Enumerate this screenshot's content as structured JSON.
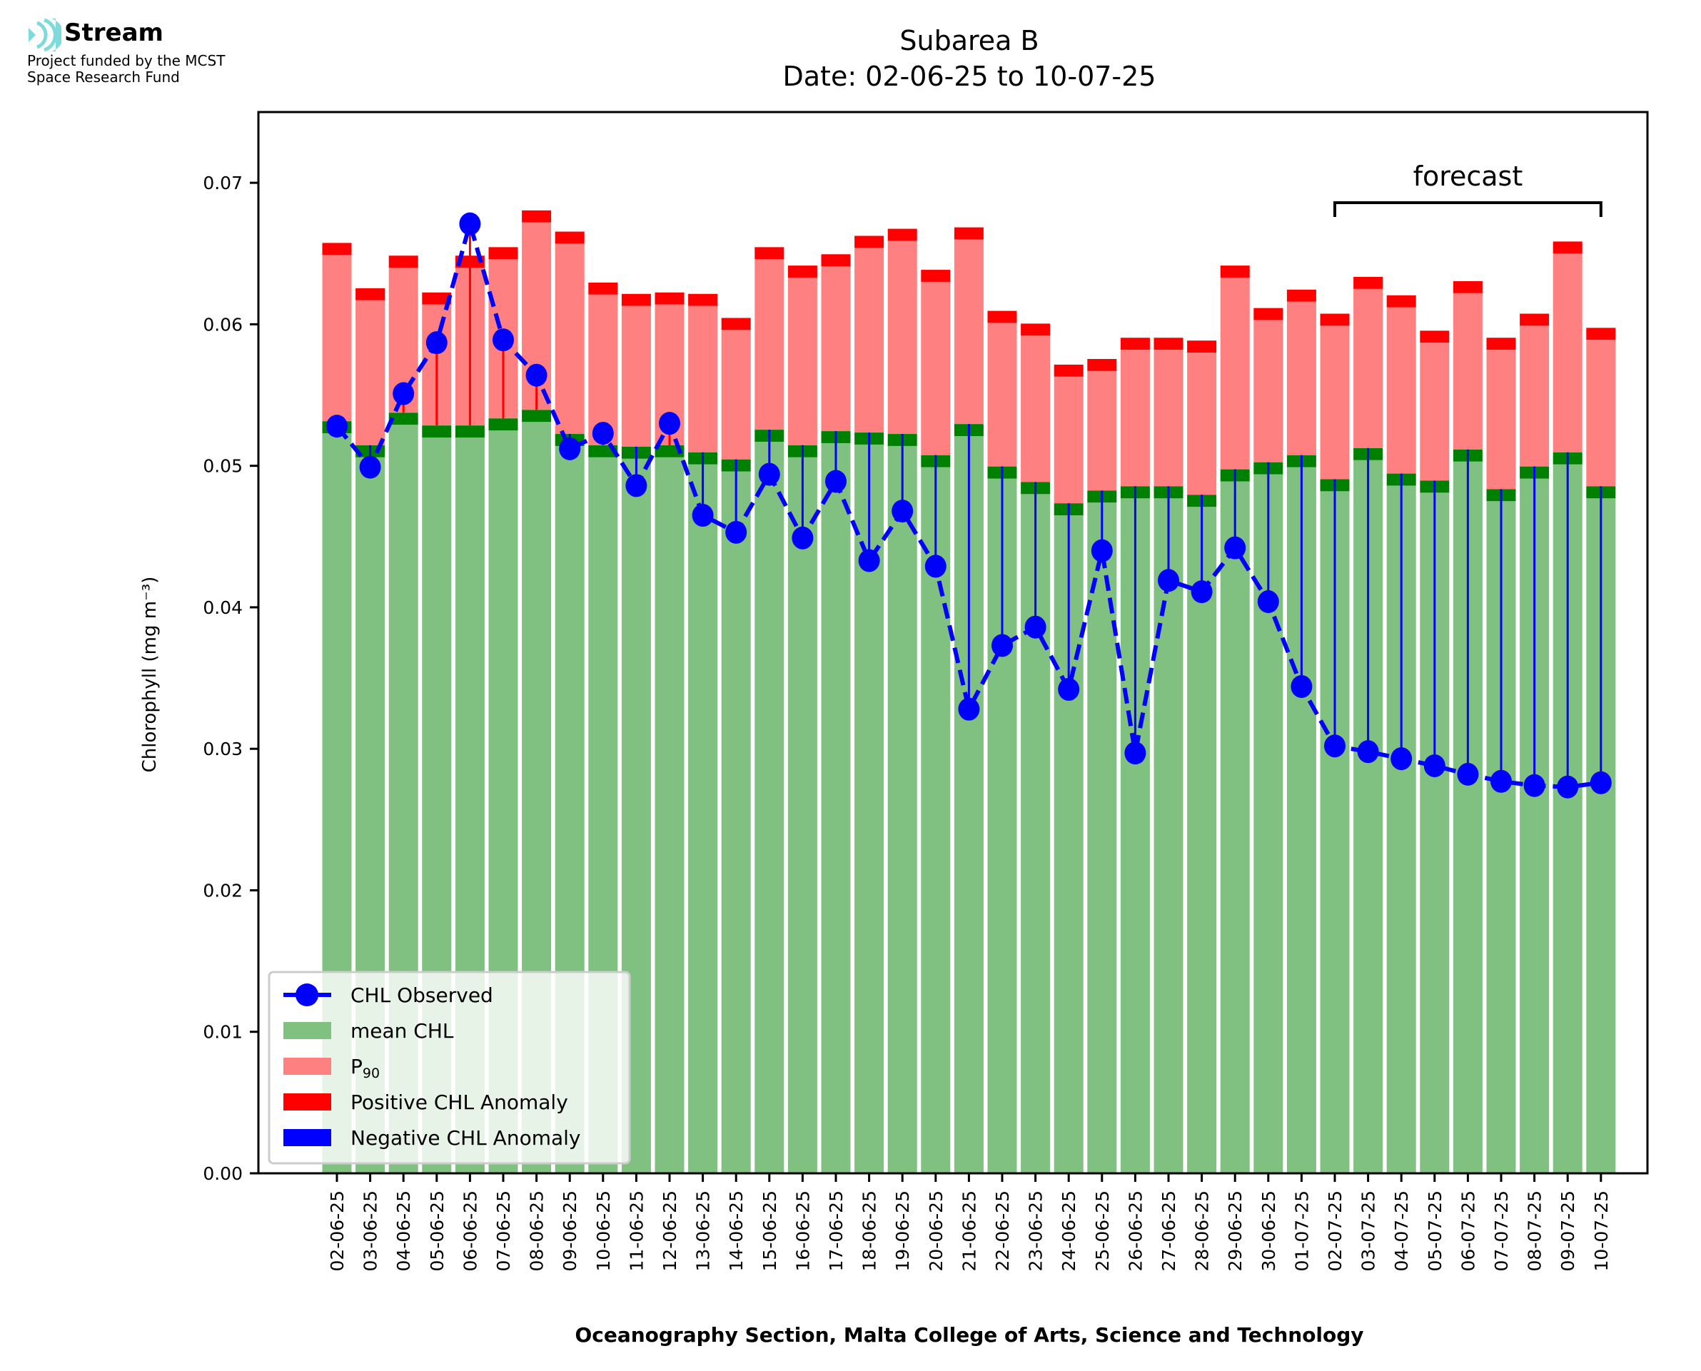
{
  "logo": {
    "name": "Stream",
    "subtitle_line1": "Project funded by the MCST",
    "subtitle_line2": "Space Research Fund",
    "color": "#7fdbdb"
  },
  "chart_data": {
    "type": "bar",
    "title": "Subarea B",
    "subtitle": "Date: 02-06-25 to 10-07-25",
    "xlabel": "Oceanography Section, Malta College of Arts, Science and Technology",
    "ylabel": "Chlorophyll (mg m⁻³)",
    "ylim": [
      0,
      0.075
    ],
    "yticks": [
      "0.00",
      "0.01",
      "0.02",
      "0.03",
      "0.04",
      "0.05",
      "0.06",
      "0.07"
    ],
    "grid": false,
    "legend_position": "lower-left",
    "annotation": {
      "text": "forecast",
      "from": "02-07-25",
      "to": "10-07-25"
    },
    "legend": [
      {
        "key": "observed",
        "label": "CHL Observed",
        "color": "#0000ff"
      },
      {
        "key": "mean",
        "label": "mean CHL",
        "color": "#80c080"
      },
      {
        "key": "p90",
        "label": "P",
        "sub": "90",
        "color": "#ff8080"
      },
      {
        "key": "pos",
        "label": "Positive CHL Anomaly",
        "color": "#ff0000"
      },
      {
        "key": "neg",
        "label": "Negative CHL Anomaly",
        "color": "#0000ff"
      }
    ],
    "colors": {
      "mean": "#80c080",
      "mean_band": "#008000",
      "p90": "#ff8080",
      "p90_band": "#ff0000",
      "observed": "#0000ff",
      "positive": "#ff0000",
      "negative": "#0000ff"
    },
    "categories": [
      "02-06-25",
      "03-06-25",
      "04-06-25",
      "05-06-25",
      "06-06-25",
      "07-06-25",
      "08-06-25",
      "09-06-25",
      "10-06-25",
      "11-06-25",
      "12-06-25",
      "13-06-25",
      "14-06-25",
      "15-06-25",
      "16-06-25",
      "17-06-25",
      "18-06-25",
      "19-06-25",
      "20-06-25",
      "21-06-25",
      "22-06-25",
      "23-06-25",
      "24-06-25",
      "25-06-25",
      "26-06-25",
      "27-06-25",
      "28-06-25",
      "29-06-25",
      "30-06-25",
      "01-07-25",
      "02-07-25",
      "03-07-25",
      "04-07-25",
      "05-07-25",
      "06-07-25",
      "07-07-25",
      "08-07-25",
      "09-07-25",
      "10-07-25"
    ],
    "series": [
      {
        "name": "mean CHL",
        "values": [
          0.0523,
          0.0506,
          0.0529,
          0.052,
          0.052,
          0.0525,
          0.0531,
          0.0514,
          0.0506,
          0.0505,
          0.0506,
          0.0501,
          0.0496,
          0.0517,
          0.0506,
          0.0516,
          0.0515,
          0.0514,
          0.0499,
          0.0521,
          0.0491,
          0.048,
          0.0465,
          0.0474,
          0.0477,
          0.0477,
          0.0471,
          0.0489,
          0.0494,
          0.0499,
          0.0482,
          0.0504,
          0.0486,
          0.0481,
          0.0503,
          0.0475,
          0.0491,
          0.0501,
          0.0477
        ]
      },
      {
        "name": "P90",
        "values": [
          0.0649,
          0.0617,
          0.064,
          0.0614,
          0.064,
          0.0646,
          0.0672,
          0.0657,
          0.0621,
          0.0613,
          0.0614,
          0.0613,
          0.0596,
          0.0646,
          0.0633,
          0.0641,
          0.0654,
          0.0659,
          0.063,
          0.066,
          0.0601,
          0.0592,
          0.0563,
          0.0567,
          0.0582,
          0.0582,
          0.058,
          0.0633,
          0.0603,
          0.0616,
          0.0599,
          0.0625,
          0.0612,
          0.0587,
          0.0622,
          0.0582,
          0.0599,
          0.065,
          0.0589
        ]
      },
      {
        "name": "CHL Observed",
        "values": [
          0.0528,
          0.0499,
          0.0551,
          0.0587,
          0.0671,
          0.0589,
          0.0564,
          0.0512,
          0.0523,
          0.0486,
          0.053,
          0.0465,
          0.0453,
          0.0494,
          0.0449,
          0.0489,
          0.0433,
          0.0468,
          0.0429,
          0.0328,
          0.0373,
          0.0386,
          0.0342,
          0.044,
          0.0297,
          0.0419,
          0.0411,
          0.0442,
          0.0404,
          0.0344,
          0.0302,
          0.0298,
          0.0293,
          0.0288,
          0.0282,
          0.0277,
          0.0274,
          0.0273,
          0.0276
        ]
      }
    ]
  }
}
